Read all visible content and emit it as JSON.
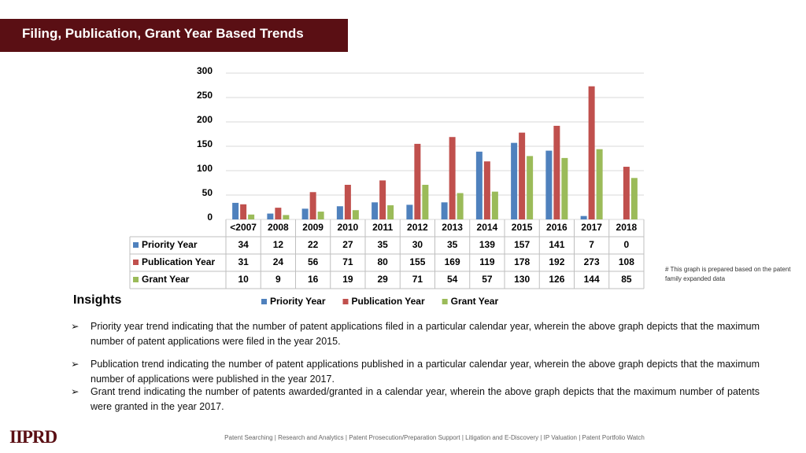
{
  "header": {
    "title": "Filing, Publication, Grant Year Based Trends"
  },
  "chart_data": {
    "type": "bar",
    "categories": [
      "<2007",
      "2008",
      "2009",
      "2010",
      "2011",
      "2012",
      "2013",
      "2014",
      "2015",
      "2016",
      "2017",
      "2018"
    ],
    "series": [
      {
        "name": "Priority Year",
        "color": "#4f81bd",
        "values": [
          34,
          12,
          22,
          27,
          35,
          30,
          35,
          139,
          157,
          141,
          7,
          0
        ]
      },
      {
        "name": "Publication Year",
        "color": "#c0504d",
        "values": [
          31,
          24,
          56,
          71,
          80,
          155,
          169,
          119,
          178,
          192,
          273,
          108
        ]
      },
      {
        "name": "Grant Year",
        "color": "#9bbb59",
        "values": [
          10,
          9,
          16,
          19,
          29,
          71,
          54,
          57,
          130,
          126,
          144,
          85
        ]
      }
    ],
    "ylim": [
      0,
      300
    ],
    "yticks": [
      0,
      50,
      100,
      150,
      200,
      250,
      300
    ],
    "grid": true,
    "legend": "bottom",
    "note": "# This graph is prepared based on the patent family expanded data"
  },
  "insights": {
    "title": "Insights",
    "bullets": [
      "Priority year trend indicating that the number of patent applications filed in a particular calendar year, wherein the above graph depicts that the maximum number of patent applications were filed in the year 2015.",
      "Publication trend indicating the number of patent applications published in a particular calendar year, wherein the above graph depicts that the maximum number of applications were published  in the year 2017.",
      "Grant trend indicating the number of patents awarded/granted in a calendar year, wherein the above graph depicts that the maximum number of patents were granted in the year 2017."
    ]
  },
  "footer": {
    "logo": "IIPRD",
    "text": "Patent Searching | Research and Analytics | Patent Prosecution/Preparation Support | Litigation and E-Discovery | IP Valuation | Patent Portfolio Watch"
  }
}
